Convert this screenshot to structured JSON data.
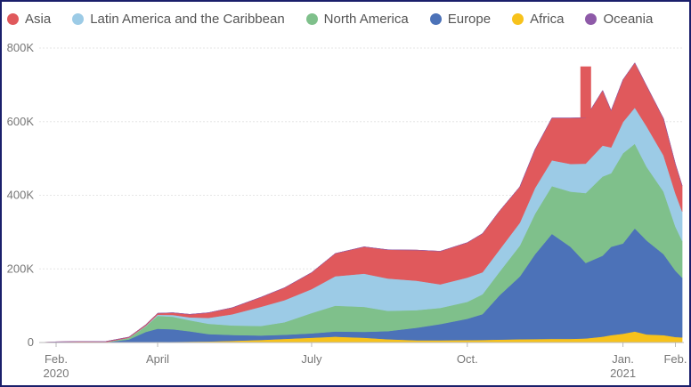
{
  "chart_data": {
    "type": "area",
    "stacked": true,
    "legend": {
      "placement": "top-left"
    },
    "series": [
      {
        "name": "Asia",
        "color": "#e0595c"
      },
      {
        "name": "Latin America and the Caribbean",
        "color": "#9ccbe6"
      },
      {
        "name": "North America",
        "color": "#7fc08b"
      },
      {
        "name": "Europe",
        "color": "#4c72b8"
      },
      {
        "name": "Africa",
        "color": "#f7c21b"
      },
      {
        "name": "Oceania",
        "color": "#8e5aa8"
      }
    ],
    "stack_order": [
      "Africa",
      "Europe",
      "North America",
      "Latin America and the Caribbean",
      "Asia",
      "Oceania"
    ],
    "x": [
      "2020-01-22",
      "2020-02-01",
      "2020-02-15",
      "2020-03-01",
      "2020-03-15",
      "2020-03-25",
      "2020-04-01",
      "2020-04-10",
      "2020-04-20",
      "2020-05-01",
      "2020-05-15",
      "2020-06-01",
      "2020-06-15",
      "2020-07-01",
      "2020-07-15",
      "2020-08-01",
      "2020-08-15",
      "2020-09-01",
      "2020-09-15",
      "2020-10-01",
      "2020-10-10",
      "2020-10-20",
      "2020-11-01",
      "2020-11-10",
      "2020-11-20",
      "2020-12-01",
      "2020-12-10",
      "2020-12-20",
      "2020-12-25",
      "2021-01-01",
      "2021-01-08",
      "2021-01-15",
      "2021-01-25",
      "2021-02-01",
      "2021-02-05"
    ],
    "values": {
      "Africa": [
        0,
        0,
        0,
        0,
        300,
        800,
        1500,
        2000,
        2500,
        3000,
        4500,
        7000,
        10000,
        13000,
        16000,
        13000,
        9000,
        6000,
        6000,
        6500,
        7000,
        8000,
        9000,
        9500,
        10000,
        10000,
        11000,
        16000,
        20000,
        24000,
        30000,
        22000,
        20000,
        15000,
        14000
      ],
      "Europe": [
        0,
        0,
        0,
        500,
        8000,
        28000,
        36000,
        34000,
        28000,
        20000,
        16000,
        12000,
        11000,
        12000,
        14000,
        16000,
        22000,
        34000,
        44000,
        58000,
        70000,
        120000,
        170000,
        230000,
        285000,
        250000,
        205000,
        220000,
        240000,
        245000,
        280000,
        255000,
        220000,
        180000,
        162000
      ],
      "North America": [
        0,
        0,
        0,
        200,
        4000,
        15000,
        35000,
        34000,
        30000,
        28000,
        26000,
        26000,
        34000,
        55000,
        70000,
        68000,
        55000,
        48000,
        44000,
        46000,
        54000,
        64000,
        84000,
        110000,
        130000,
        150000,
        190000,
        215000,
        200000,
        245000,
        230000,
        200000,
        170000,
        120000,
        100000
      ],
      "Latin America and the Caribbean": [
        0,
        0,
        0,
        0,
        400,
        1500,
        3000,
        5000,
        8000,
        16000,
        30000,
        52000,
        60000,
        65000,
        80000,
        90000,
        88000,
        80000,
        64000,
        66000,
        60000,
        60000,
        62000,
        70000,
        70000,
        75000,
        80000,
        84000,
        70000,
        85000,
        98000,
        110000,
        98000,
        90000,
        80000
      ],
      "Asia": [
        0,
        2000,
        3000,
        2000,
        2000,
        3000,
        4000,
        6000,
        8000,
        14000,
        18000,
        26000,
        34000,
        45000,
        62000,
        73000,
        78000,
        83000,
        90000,
        95000,
        105000,
        105000,
        98000,
        105000,
        115000,
        125000,
        125000,
        150000,
        100000,
        115000,
        122000,
        110000,
        100000,
        80000,
        70000
      ],
      "Oceania": [
        0,
        0,
        0,
        0,
        0,
        0,
        0,
        0,
        0,
        0,
        0,
        0,
        0,
        0,
        0,
        0,
        0,
        0,
        0,
        0,
        0,
        0,
        0,
        0,
        0,
        0,
        0,
        0,
        0,
        0,
        0,
        0,
        0,
        0,
        0
      ]
    },
    "annotations": [
      {
        "x": "2020-12-10",
        "y_top": 750000,
        "note": "spike"
      }
    ],
    "ylim": [
      0,
      800000
    ],
    "yticks": [
      0,
      200000,
      400000,
      600000,
      800000
    ],
    "ytick_labels": [
      "0",
      "200K",
      "400K",
      "600K",
      "800K"
    ],
    "xticks": [
      "2020-02-01",
      "2020-04-01",
      "2020-07-01",
      "2020-10-01",
      "2021-01-01",
      "2021-02-01"
    ],
    "xtick_labels": [
      [
        "Feb.",
        "2020"
      ],
      [
        "April"
      ],
      [
        "July"
      ],
      [
        "Oct."
      ],
      [
        "Jan.",
        "2021"
      ],
      [
        "Feb."
      ]
    ],
    "grid": true,
    "title": "",
    "xlabel": "",
    "ylabel": ""
  }
}
